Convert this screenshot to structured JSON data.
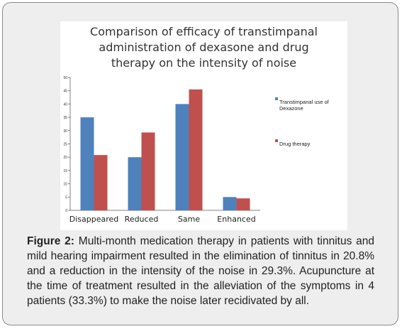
{
  "figure": {
    "caption_label": "Figure 2:",
    "caption_text": " Multi-month medication therapy in patients with tinnitus and mild hearing impairment resulted in the elimination of tinnitus in 20.8% and a reduction in the intensity of the noise in 29.3%. Acupuncture at the time of treatment resulted in the alleviation of the symptoms in 4 patients (33.3%) to make the noise later recidivated by all."
  },
  "chart_data": {
    "type": "bar",
    "title_lines": [
      "Comparison of efficacy of transtimpanal",
      "administration of dexasone and drug",
      "therapy on the intensity of noise"
    ],
    "categories": [
      "Disappeared",
      "Reduced",
      "Same",
      "Enhanced"
    ],
    "series": [
      {
        "name": "Transtimpanal use of Dexazone",
        "legend_lines": [
          "Transtimpanal use of",
          "Dexazone"
        ],
        "color": "#4f81bd",
        "values": [
          35,
          20,
          40,
          5
        ]
      },
      {
        "name": "Drug therapy",
        "legend_lines": [
          "Drug therapy"
        ],
        "color": "#c0504d",
        "values": [
          20.8,
          29.3,
          45.5,
          4.5
        ]
      }
    ],
    "ylim": [
      0,
      50
    ],
    "yticks": [
      0,
      5,
      10,
      15,
      20,
      25,
      30,
      35,
      40,
      45,
      50
    ],
    "grid": false,
    "legend_position": "right",
    "xlabel": "",
    "ylabel": ""
  }
}
